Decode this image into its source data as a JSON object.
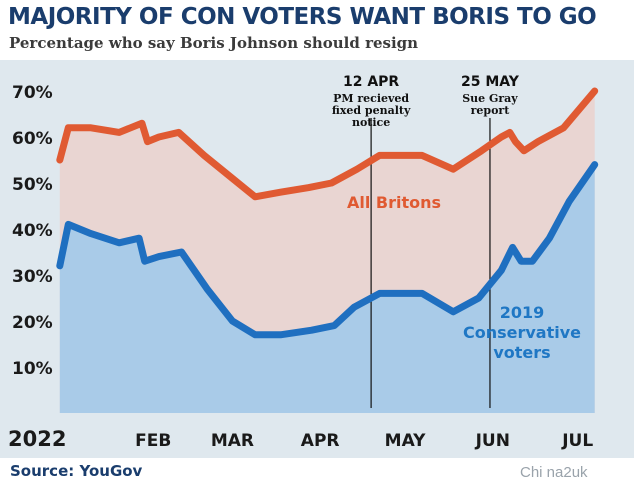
{
  "title": "MAJORITY OF CON VOTERS WANT BORIS TO GO",
  "subtitle": "Percentage who say Boris Johnson should resign",
  "source": "Source: YouGov",
  "watermark": "Chi na2uk",
  "colors": {
    "britons_line": "#e05a32",
    "britons_fill": "#e9d5d2",
    "con_line": "#1f6fc0",
    "con_fill": "#a9cbe8",
    "background": "#dfe8ee",
    "title": "#1a3d6d"
  },
  "chart_data": {
    "type": "area",
    "x_axis": {
      "type": "date",
      "range": [
        "2022-01-01",
        "2022-07-20"
      ],
      "ticks": [
        {
          "date": "2022-01-01",
          "label": "2022"
        },
        {
          "date": "2022-02-10",
          "label": "FEB"
        },
        {
          "date": "2022-03-10",
          "label": "MAR"
        },
        {
          "date": "2022-04-10",
          "label": "APR"
        },
        {
          "date": "2022-05-10",
          "label": "MAY"
        },
        {
          "date": "2022-06-10",
          "label": "JUN"
        },
        {
          "date": "2022-07-10",
          "label": "JUL"
        }
      ]
    },
    "y_axis": {
      "range": [
        0,
        75
      ],
      "ticks": [
        {
          "value": 10,
          "label": "10%"
        },
        {
          "value": 20,
          "label": "20%"
        },
        {
          "value": 30,
          "label": "30%"
        },
        {
          "value": 40,
          "label": "40%"
        },
        {
          "value": 50,
          "label": "50%"
        },
        {
          "value": 60,
          "label": "60%"
        },
        {
          "value": 70,
          "label": "70%"
        }
      ]
    },
    "grid": false,
    "series": [
      {
        "name": "All Britons",
        "label_lines": [
          "All Britons"
        ],
        "points": [
          [
            "2022-01-08",
            55
          ],
          [
            "2022-01-11",
            62
          ],
          [
            "2022-01-19",
            62
          ],
          [
            "2022-01-29",
            61
          ],
          [
            "2022-02-06",
            63
          ],
          [
            "2022-02-08",
            59
          ],
          [
            "2022-02-12",
            60
          ],
          [
            "2022-02-19",
            61
          ],
          [
            "2022-02-28",
            56
          ],
          [
            "2022-03-10",
            51
          ],
          [
            "2022-03-18",
            47
          ],
          [
            "2022-03-27",
            48
          ],
          [
            "2022-04-06",
            49
          ],
          [
            "2022-04-14",
            50
          ],
          [
            "2022-04-23",
            53
          ],
          [
            "2022-05-01",
            56
          ],
          [
            "2022-05-11",
            56
          ],
          [
            "2022-05-16",
            56
          ],
          [
            "2022-05-27",
            53
          ],
          [
            "2022-06-06",
            57
          ],
          [
            "2022-06-13",
            60
          ],
          [
            "2022-06-16",
            61
          ],
          [
            "2022-06-18",
            59
          ],
          [
            "2022-06-21",
            57
          ],
          [
            "2022-06-26",
            59
          ],
          [
            "2022-07-05",
            62
          ],
          [
            "2022-07-16",
            70
          ]
        ]
      },
      {
        "name": "2019 Conservative voters",
        "label_lines": [
          "2019",
          "Conservative",
          "voters"
        ],
        "points": [
          [
            "2022-01-08",
            32
          ],
          [
            "2022-01-11",
            41
          ],
          [
            "2022-01-19",
            39
          ],
          [
            "2022-01-29",
            37
          ],
          [
            "2022-02-05",
            38
          ],
          [
            "2022-02-07",
            33
          ],
          [
            "2022-02-12",
            34
          ],
          [
            "2022-02-20",
            35
          ],
          [
            "2022-03-01",
            27
          ],
          [
            "2022-03-10",
            20
          ],
          [
            "2022-03-18",
            17
          ],
          [
            "2022-03-27",
            17
          ],
          [
            "2022-04-07",
            18
          ],
          [
            "2022-04-15",
            19
          ],
          [
            "2022-04-22",
            23
          ],
          [
            "2022-05-01",
            26
          ],
          [
            "2022-05-11",
            26
          ],
          [
            "2022-05-16",
            26
          ],
          [
            "2022-05-27",
            22
          ],
          [
            "2022-06-05",
            25
          ],
          [
            "2022-06-13",
            31
          ],
          [
            "2022-06-17",
            36
          ],
          [
            "2022-06-20",
            33
          ],
          [
            "2022-06-24",
            33
          ],
          [
            "2022-06-30",
            38
          ],
          [
            "2022-07-07",
            46
          ],
          [
            "2022-07-16",
            54
          ]
        ]
      }
    ],
    "annotations": [
      {
        "date": "2022-04-28",
        "head": "12 APR",
        "lines": [
          "PM recieved",
          "fixed penalty",
          "notice"
        ]
      },
      {
        "date": "2022-06-09",
        "head": "25 MAY",
        "lines": [
          "Sue Gray",
          "report"
        ]
      }
    ]
  }
}
